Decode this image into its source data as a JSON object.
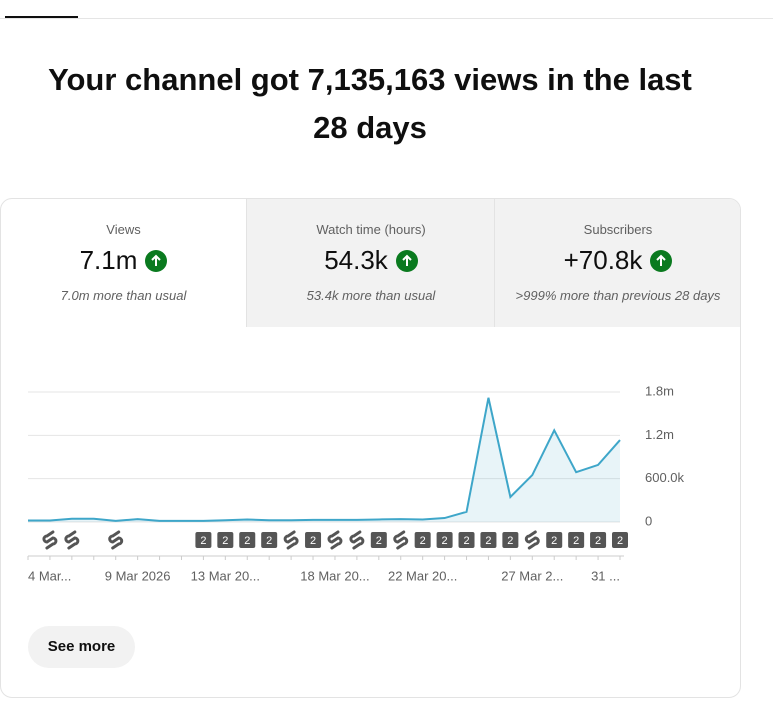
{
  "header": {
    "title": "Your channel got 7,135,163 views in the last 28 days"
  },
  "metrics": [
    {
      "label": "Views",
      "value": "7.1m",
      "note": "7.0m more than usual"
    },
    {
      "label": "Watch time (hours)",
      "value": "54.3k",
      "note": "53.4k more than usual"
    },
    {
      "label": "Subscribers",
      "value": "+70.8k",
      "note": ">999% more than previous 28 days"
    }
  ],
  "chart_data": {
    "type": "line",
    "categories": [
      "4 Mar...",
      null,
      null,
      null,
      null,
      "9 Mar 2026",
      null,
      null,
      null,
      "13 Mar 20...",
      null,
      null,
      null,
      null,
      "18 Mar 20...",
      null,
      null,
      null,
      "22 Mar 20...",
      null,
      null,
      null,
      null,
      "27 Mar 2...",
      null,
      null,
      null,
      "31 ..."
    ],
    "values": [
      20000,
      20000,
      45000,
      45000,
      15000,
      40000,
      15000,
      15000,
      15000,
      25000,
      35000,
      25000,
      25000,
      30000,
      30000,
      30000,
      35000,
      40000,
      35000,
      55000,
      140000,
      1720000,
      346000,
      650000,
      1270000,
      690000,
      790000,
      1135000
    ],
    "video_badges": [
      null,
      null,
      null,
      null,
      null,
      null,
      null,
      null,
      2,
      2,
      2,
      2,
      null,
      2,
      null,
      null,
      2,
      null,
      2,
      2,
      2,
      2,
      2,
      null,
      2,
      2,
      2,
      2
    ],
    "color": "#3ea6c9",
    "ylim": [
      0,
      1800000
    ],
    "yticks": [
      0,
      {
        "value": 600000,
        "label": "600.0k"
      },
      {
        "value": 1200000,
        "label": "1.2m"
      },
      {
        "value": 1800000,
        "label": "1.8m"
      }
    ],
    "grid": true
  },
  "see_more": "See more"
}
